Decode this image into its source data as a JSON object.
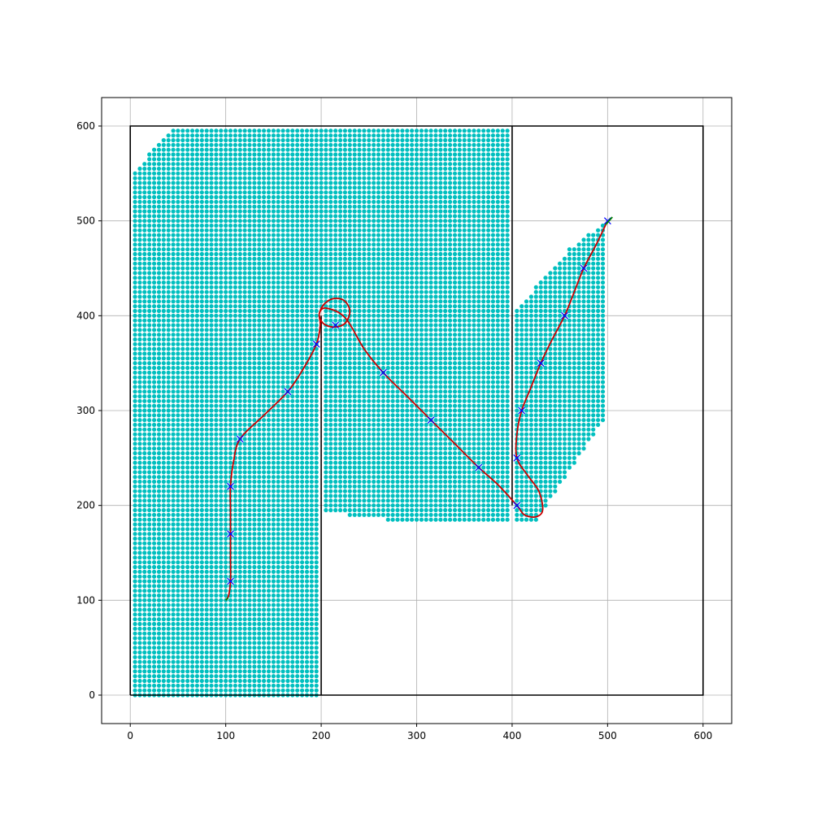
{
  "chart_data": {
    "type": "scatter",
    "title": "",
    "xlabel": "",
    "ylabel": "",
    "xlim": [
      -30,
      630
    ],
    "ylim": [
      -30,
      630
    ],
    "x_ticks": [
      0,
      100,
      200,
      300,
      400,
      500,
      600
    ],
    "y_ticks": [
      0,
      100,
      200,
      300,
      400,
      500,
      600
    ],
    "x_tick_labels": [
      "0",
      "100",
      "200",
      "300",
      "400",
      "500",
      "600"
    ],
    "y_tick_labels": [
      "0",
      "100",
      "200",
      "300",
      "400",
      "500",
      "600"
    ],
    "grid": true,
    "colors": {
      "walls": "#000000",
      "free_space": "#00bfbf",
      "path": "#cc0000",
      "waypoints": "#0000ff",
      "endpoints": "#008000",
      "grid": "#b0b0b0"
    },
    "walls": [
      {
        "name": "outer-boundary",
        "points": [
          [
            0,
            0
          ],
          [
            600,
            0
          ],
          [
            600,
            600
          ],
          [
            0,
            600
          ],
          [
            0,
            0
          ]
        ]
      },
      {
        "name": "left-room-divider",
        "points": [
          [
            200,
            0
          ],
          [
            200,
            400
          ]
        ]
      },
      {
        "name": "middle-room-divider",
        "points": [
          [
            400,
            200
          ],
          [
            400,
            600
          ]
        ]
      }
    ],
    "free_space_regions": [
      {
        "name": "left-region",
        "polygon": [
          [
            3,
            0
          ],
          [
            197,
            0
          ],
          [
            197,
            400
          ],
          [
            203,
            415
          ],
          [
            203,
            600
          ],
          [
            45,
            600
          ],
          [
            3,
            550
          ]
        ]
      },
      {
        "name": "center-region",
        "polygon": [
          [
            203,
            193
          ],
          [
            230,
            193
          ],
          [
            230,
            188
          ],
          [
            270,
            188
          ],
          [
            270,
            183
          ],
          [
            397,
            183
          ],
          [
            397,
            598
          ],
          [
            203,
            598
          ]
        ]
      },
      {
        "name": "right-region",
        "polygon": [
          [
            403,
            183
          ],
          [
            425,
            183
          ],
          [
            500,
            295
          ],
          [
            500,
            500
          ],
          [
            460,
            470
          ],
          [
            403,
            405
          ]
        ]
      }
    ],
    "free_space_spacing": 5,
    "waypoints": [
      [
        105,
        120
      ],
      [
        105,
        170
      ],
      [
        105,
        220
      ],
      [
        115,
        270
      ],
      [
        165,
        320
      ],
      [
        195,
        370
      ],
      [
        215,
        390
      ],
      [
        265,
        340
      ],
      [
        315,
        290
      ],
      [
        365,
        240
      ],
      [
        405,
        200
      ],
      [
        405,
        250
      ],
      [
        410,
        300
      ],
      [
        430,
        350
      ],
      [
        455,
        400
      ],
      [
        475,
        450
      ],
      [
        500,
        500
      ]
    ],
    "path": [
      [
        100,
        100
      ],
      [
        103,
        105
      ],
      [
        105,
        120
      ],
      [
        105,
        145
      ],
      [
        105,
        170
      ],
      [
        105,
        195
      ],
      [
        105,
        220
      ],
      [
        108,
        245
      ],
      [
        115,
        270
      ],
      [
        140,
        295
      ],
      [
        165,
        320
      ],
      [
        180,
        342
      ],
      [
        195,
        370
      ],
      [
        199,
        390
      ],
      [
        198,
        402
      ],
      [
        203,
        412
      ],
      [
        213,
        418
      ],
      [
        224,
        416
      ],
      [
        230,
        405
      ],
      [
        225,
        392
      ],
      [
        213,
        388
      ],
      [
        202,
        392
      ],
      [
        198,
        402
      ],
      [
        205,
        408
      ],
      [
        225,
        398
      ],
      [
        245,
        365
      ],
      [
        265,
        340
      ],
      [
        290,
        315
      ],
      [
        315,
        290
      ],
      [
        340,
        265
      ],
      [
        365,
        240
      ],
      [
        385,
        222
      ],
      [
        405,
        200
      ],
      [
        413,
        190
      ],
      [
        425,
        188
      ],
      [
        432,
        195
      ],
      [
        428,
        215
      ],
      [
        416,
        232
      ],
      [
        405,
        250
      ],
      [
        405,
        275
      ],
      [
        410,
        300
      ],
      [
        420,
        325
      ],
      [
        430,
        350
      ],
      [
        442,
        375
      ],
      [
        455,
        400
      ],
      [
        465,
        425
      ],
      [
        475,
        450
      ],
      [
        488,
        475
      ],
      [
        500,
        500
      ]
    ],
    "start": [
      100,
      100
    ],
    "goal": [
      500,
      500
    ],
    "goal_heading": [
      [
        498,
        496
      ],
      [
        505,
        504
      ]
    ]
  }
}
